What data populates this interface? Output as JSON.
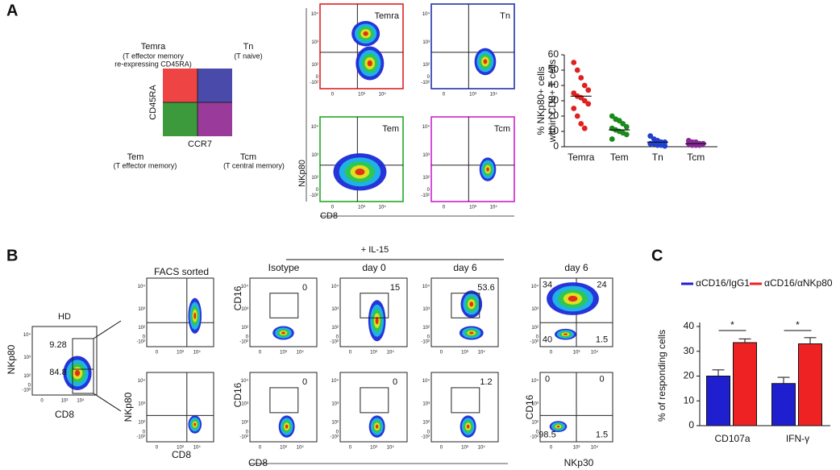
{
  "panel_labels": [
    "A",
    "B",
    "C"
  ],
  "panel_a": {
    "quadrant": {
      "temra": "Temra",
      "temra_desc_1": "(T effector memory",
      "temra_desc_2": "re-expressing CD45RA)",
      "tn": "Tn",
      "tn_desc": "(T naive)",
      "tem": "Tem",
      "tem_desc": "(T effector memory)",
      "tcm": "Tcm",
      "tcm_desc": "(T central memory)",
      "y_label": "CD45RA",
      "x_label": "CCR7"
    },
    "flow": {
      "titles": [
        "Temra",
        "Tn",
        "Tem",
        "Tcm"
      ],
      "y_label": "NKp80",
      "x_label": "CD8"
    }
  },
  "panel_b": {
    "treatment": "+ IL-15",
    "hd": {
      "title": "HD",
      "gates": [
        9.28,
        84.8
      ],
      "y_label": "NKp80",
      "x_label": "CD8"
    },
    "sorted": {
      "title": "FACS sorted",
      "y_label": "NKp80",
      "x_label": "CD8"
    },
    "il15": {
      "titles": [
        "Isotype",
        "day 0",
        "day 6"
      ],
      "top_gates": [
        0,
        15,
        53.6
      ],
      "bottom_gates": [
        0,
        0,
        1.2
      ],
      "y_label": "CD16",
      "x_label": "CD8"
    },
    "day6": {
      "title": "day 6",
      "top_quadrants": [
        34,
        24,
        40,
        1.5
      ],
      "bottom_quadrants": [
        0,
        0,
        98.5,
        1.5
      ],
      "y_label": "CD16",
      "x_label": "NKp30"
    }
  },
  "flow_axis": {
    "x_ticks": [
      "0",
      "10³",
      "10⁴"
    ],
    "y_ticks": [
      "-10²",
      "0",
      "10²",
      "10³",
      "10⁴"
    ]
  },
  "chart_data": [
    {
      "type": "scatter",
      "y_label_lines": [
        "% NKp80+ cells",
        "within CD8+ T cells"
      ],
      "categories": [
        "Temra",
        "Tem",
        "Tn",
        "Tcm"
      ],
      "series": [
        {
          "color": "#e02020",
          "values": [
            55,
            50,
            45,
            40,
            37,
            35,
            33,
            32,
            30,
            28,
            25,
            20,
            15,
            12
          ],
          "mean": 33
        },
        {
          "color": "#1a8a1a",
          "values": [
            20,
            18,
            17,
            15,
            13,
            12,
            11,
            10,
            9,
            8,
            5
          ],
          "mean": 11
        },
        {
          "color": "#2040d0",
          "values": [
            7,
            5,
            4,
            3,
            3,
            2,
            2,
            1,
            1,
            0.5
          ],
          "mean": 3
        },
        {
          "color": "#8a2a9a",
          "values": [
            4,
            3,
            3,
            2,
            2,
            2,
            1,
            1,
            1
          ],
          "mean": 2
        }
      ],
      "ylim": [
        0,
        60
      ],
      "yticks": [
        0,
        10,
        20,
        30,
        40,
        50,
        60
      ]
    },
    {
      "type": "bar",
      "y_label": "% of responding cells",
      "categories": [
        "CD107a",
        "IFN-γ"
      ],
      "series": [
        {
          "name": "αCD16/IgG1",
          "color": "#1f1fd0",
          "values": [
            20,
            17
          ],
          "errors": [
            2.5,
            2.5
          ]
        },
        {
          "name": "αCD16/αNKp80",
          "color": "#ee2222",
          "values": [
            33.5,
            33
          ],
          "errors": [
            1.5,
            2.5
          ]
        }
      ],
      "ylim": [
        0,
        40
      ],
      "yticks": [
        0,
        10,
        20,
        30,
        40
      ],
      "annotations": [
        "*",
        "*"
      ]
    }
  ]
}
